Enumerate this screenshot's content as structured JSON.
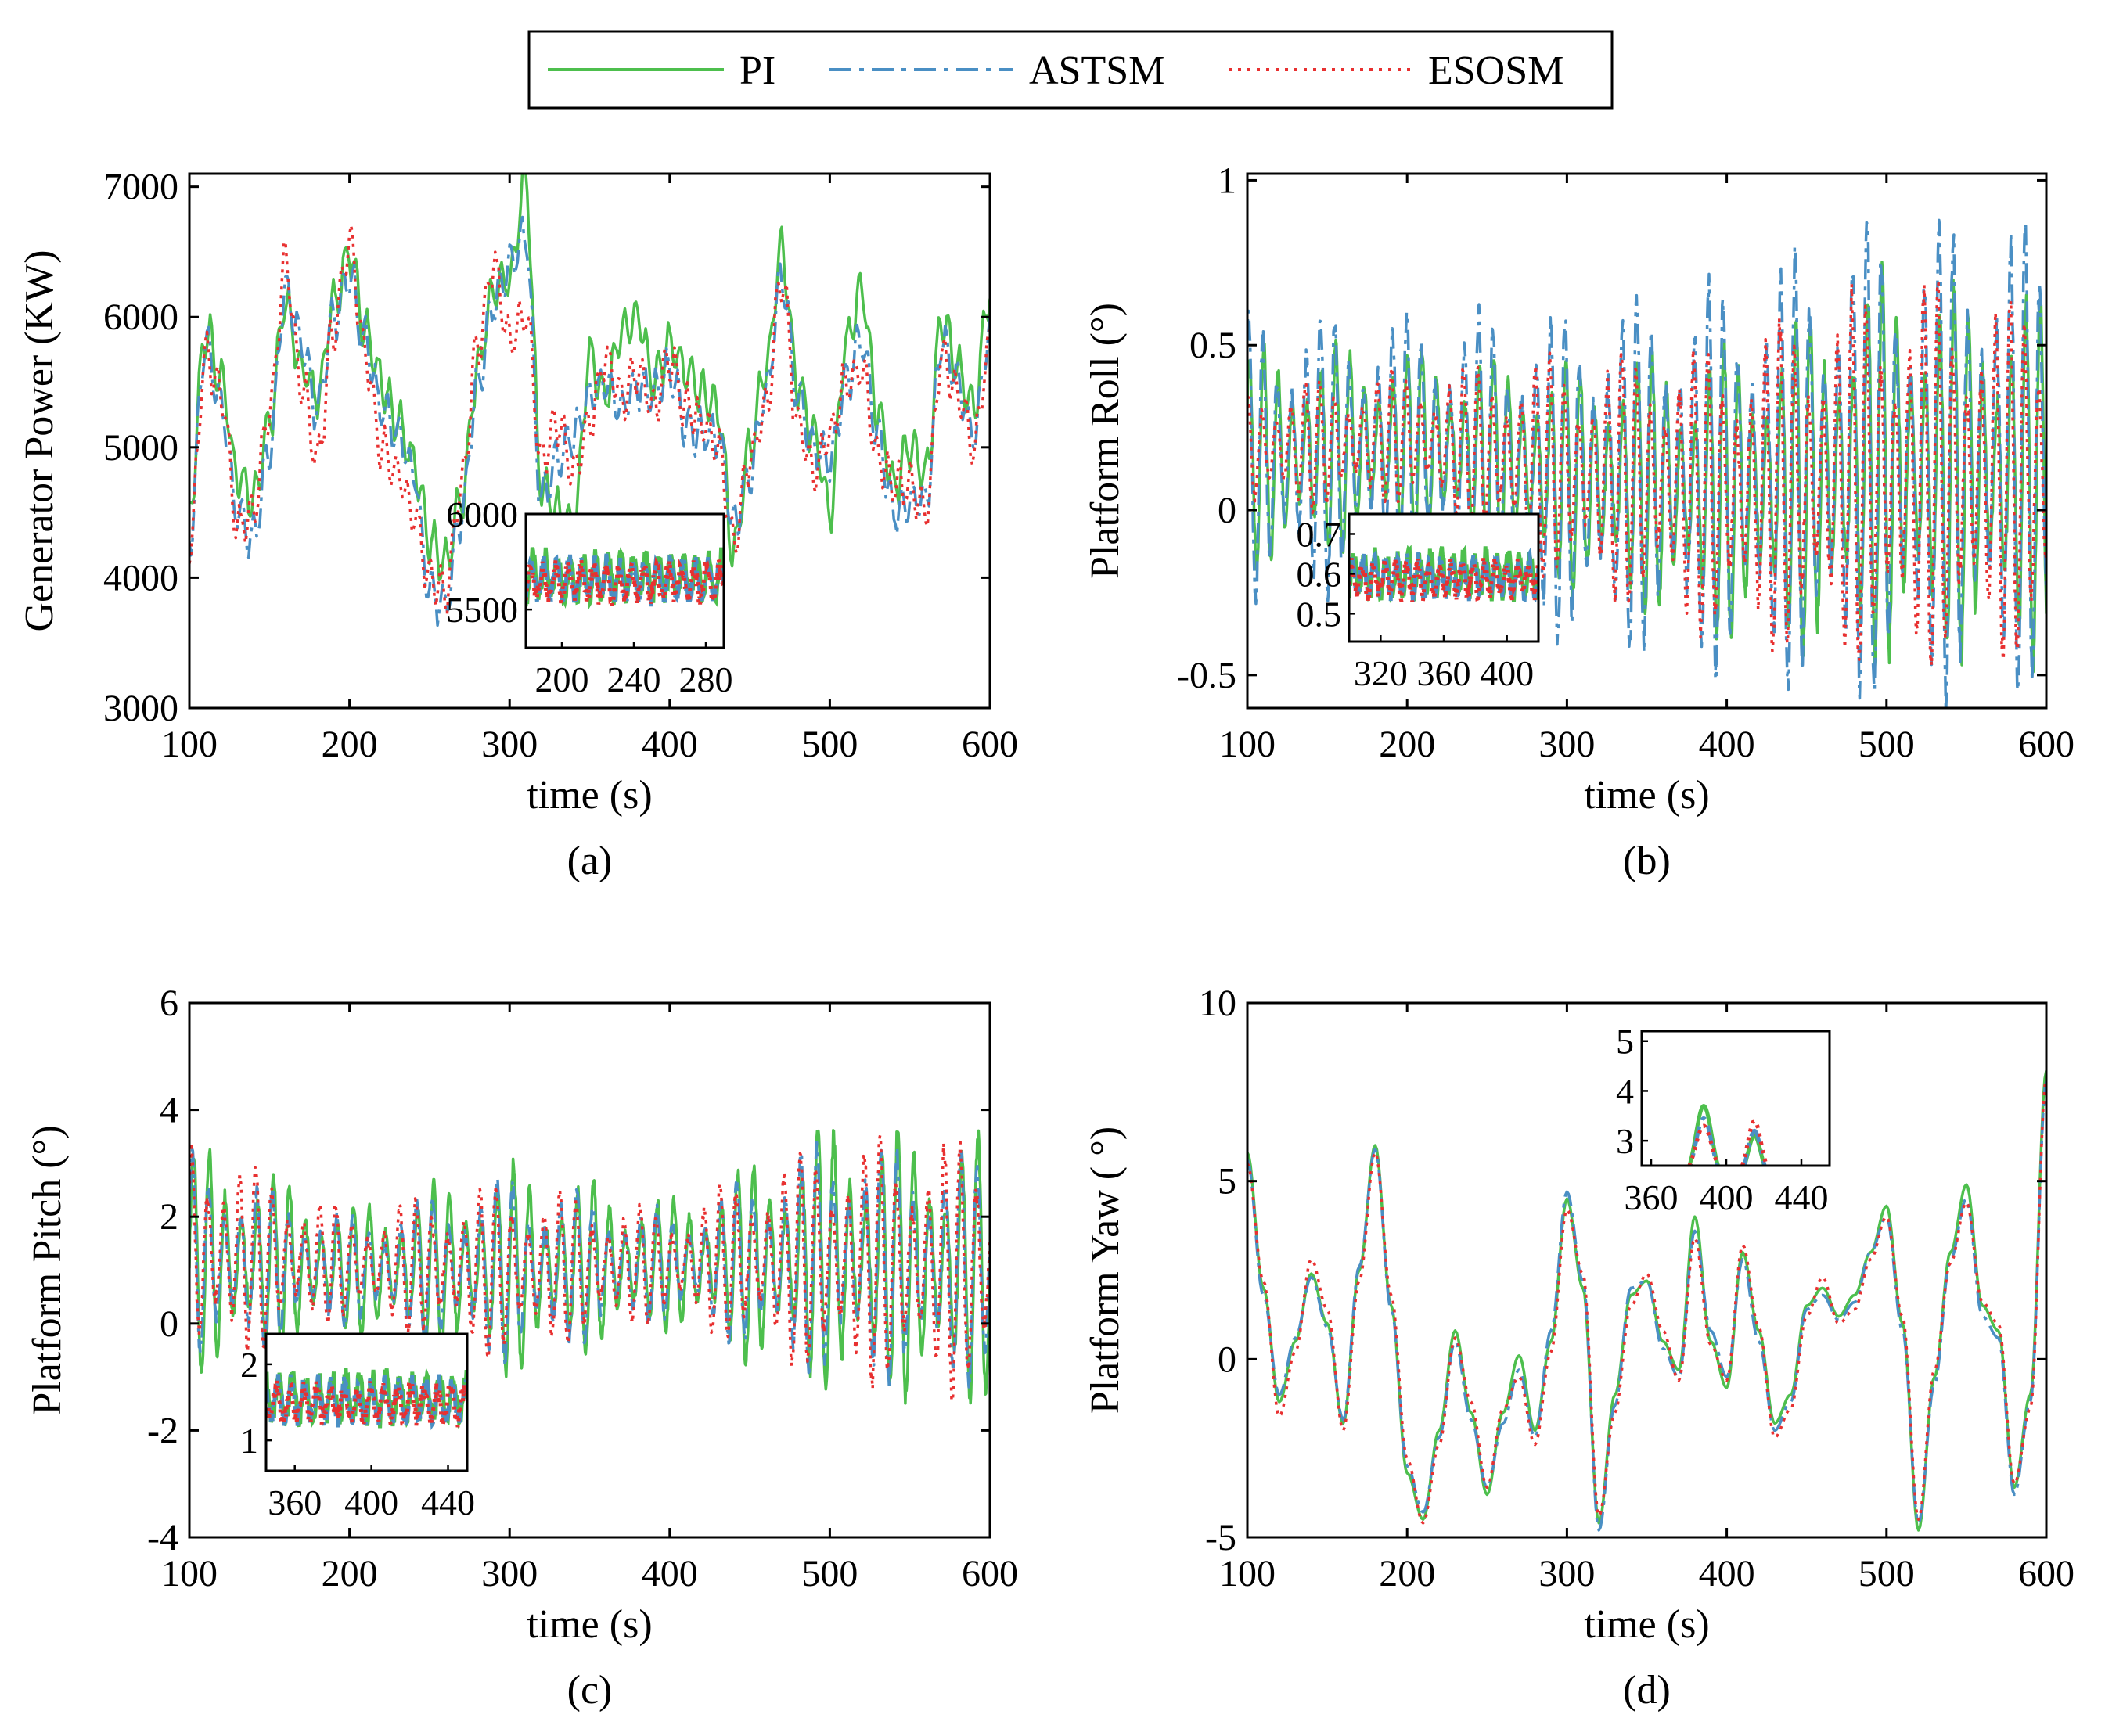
{
  "legend": {
    "entries": [
      {
        "label": "PI",
        "color": "#4dbf4d",
        "dash": "solid"
      },
      {
        "label": "ASTSM",
        "color": "#4a8fc4",
        "dash": "dashdot"
      },
      {
        "label": "ESOSM",
        "color": "#e83030",
        "dash": "dotted"
      }
    ]
  },
  "colors": {
    "pi": "#4dbf4d",
    "astsm": "#4a8fc4",
    "esosm": "#e83030"
  },
  "chart_data": [
    {
      "id": "a",
      "type": "line",
      "caption": "(a)",
      "xlabel": "time (s)",
      "ylabel": "Generator Power (KW)",
      "xlim": [
        100,
        600
      ],
      "ylim": [
        3000,
        7100
      ],
      "xticks": [
        "100",
        "200",
        "300",
        "400",
        "500",
        "600"
      ],
      "yticks": [
        "3000",
        "4000",
        "5000",
        "6000",
        "7000"
      ],
      "series": [
        {
          "name": "PI",
          "x": [
            100,
            110,
            120,
            130,
            140,
            150,
            160,
            170,
            180,
            190,
            200,
            210,
            220,
            230,
            240,
            250,
            260,
            270,
            280,
            290,
            300,
            310,
            320,
            330,
            340,
            350,
            360,
            370,
            380,
            390,
            400,
            410,
            420,
            430,
            440,
            450,
            460,
            470,
            480,
            490,
            500,
            510,
            520,
            530,
            540,
            550,
            560,
            570,
            580,
            590,
            600
          ],
          "y": [
            4500,
            5900,
            5500,
            4800,
            4600,
            5200,
            6100,
            5600,
            5400,
            6100,
            6500,
            5900,
            5500,
            5200,
            4900,
            4300,
            4100,
            4600,
            5600,
            6200,
            6300,
            7050,
            4700,
            4500,
            4400,
            5700,
            5400,
            5900,
            6000,
            5500,
            5800,
            5600,
            5400,
            5300,
            4200,
            5000,
            5600,
            6500,
            5500,
            5100,
            4500,
            5800,
            6200,
            5300,
            4700,
            5000,
            4800,
            6000,
            5600,
            5300,
            6200
          ]
        },
        {
          "name": "ASTSM",
          "x": [
            100,
            110,
            120,
            130,
            140,
            150,
            160,
            170,
            180,
            190,
            200,
            210,
            220,
            230,
            240,
            250,
            260,
            270,
            280,
            290,
            300,
            310,
            320,
            330,
            340,
            350,
            360,
            370,
            380,
            390,
            400,
            410,
            420,
            430,
            440,
            450,
            460,
            470,
            480,
            490,
            500,
            510,
            520,
            530,
            540,
            550,
            560,
            570,
            580,
            590,
            600
          ],
          "y": [
            4300,
            5800,
            5300,
            4500,
            4300,
            5000,
            6200,
            5800,
            5300,
            6000,
            6300,
            5800,
            5300,
            5100,
            4800,
            3900,
            3800,
            4500,
            5500,
            6100,
            6400,
            6600,
            4600,
            4900,
            5100,
            5400,
            5500,
            5300,
            5500,
            5400,
            5600,
            5200,
            5100,
            5100,
            4400,
            4800,
            5400,
            6300,
            5400,
            5000,
            4900,
            5500,
            5800,
            5100,
            4500,
            4600,
            4600,
            5800,
            5500,
            5100,
            5900
          ]
        },
        {
          "name": "ESOSM",
          "x": [
            100,
            110,
            120,
            130,
            140,
            150,
            160,
            170,
            180,
            190,
            200,
            210,
            220,
            230,
            240,
            250,
            260,
            270,
            280,
            290,
            300,
            310,
            320,
            330,
            340,
            350,
            360,
            370,
            380,
            390,
            400,
            410,
            420,
            430,
            440,
            450,
            460,
            470,
            480,
            490,
            500,
            510,
            520,
            530,
            540,
            550,
            560,
            570,
            580,
            590,
            600
          ],
          "y": [
            4200,
            5700,
            5400,
            4400,
            4500,
            5300,
            6400,
            5500,
            4900,
            5900,
            6600,
            5700,
            5000,
            4800,
            4500,
            4000,
            3900,
            4700,
            5800,
            6400,
            5800,
            6000,
            4900,
            5200,
            4800,
            5200,
            5700,
            5400,
            5600,
            5300,
            5700,
            5300,
            5200,
            5000,
            4300,
            4900,
            5300,
            6300,
            5200,
            4800,
            5100,
            5500,
            5600,
            4900,
            4700,
            4700,
            4500,
            5700,
            5400,
            5000,
            5800
          ]
        }
      ],
      "inset": {
        "xlim": [
          180,
          290
        ],
        "ylim": [
          5300,
          6000
        ],
        "xticks": [
          "200",
          "240",
          "280"
        ],
        "yticks": [
          "5500",
          "6000"
        ]
      }
    },
    {
      "id": "b",
      "type": "line",
      "caption": "(b)",
      "xlabel": "time (s)",
      "ylabel": "Platform Roll (°)",
      "xlim": [
        100,
        600
      ],
      "ylim": [
        -0.6,
        1.02
      ],
      "xticks": [
        "100",
        "200",
        "300",
        "400",
        "500",
        "600"
      ],
      "yticks": [
        "-0.5",
        "0",
        "0.5",
        "1"
      ],
      "series": [
        {
          "name": "PI",
          "envelope": {
            "center": [
              0.15,
              0.2,
              0.1,
              0.05,
              0.12,
              0.1
            ],
            "amp": [
              0.35,
              0.3,
              0.35,
              0.45,
              0.6,
              0.55
            ]
          },
          "period": 9
        },
        {
          "name": "ASTSM",
          "envelope": {
            "center": [
              0.15,
              0.2,
              0.1,
              0.1,
              0.15,
              0.15
            ],
            "amp": [
              0.45,
              0.4,
              0.5,
              0.6,
              0.75,
              0.7
            ]
          },
          "period": 9
        },
        {
          "name": "ESOSM",
          "envelope": {
            "center": [
              0.18,
              0.22,
              0.12,
              0.05,
              0.1,
              0.1
            ],
            "amp": [
              0.2,
              0.2,
              0.35,
              0.45,
              0.6,
              0.55
            ]
          },
          "period": 9
        }
      ],
      "inset": {
        "xlim": [
          300,
          420
        ],
        "ylim": [
          0.43,
          0.75
        ],
        "xticks": [
          "320",
          "360",
          "400"
        ],
        "yticks": [
          "0.5",
          "0.6",
          "0.7"
        ]
      }
    },
    {
      "id": "c",
      "type": "line",
      "caption": "(c)",
      "xlabel": "time (s)",
      "ylabel": "Platform Pitch (°)",
      "xlim": [
        100,
        600
      ],
      "ylim": [
        -4,
        6
      ],
      "xticks": [
        "100",
        "200",
        "300",
        "400",
        "500",
        "600"
      ],
      "yticks": [
        "-4",
        "-2",
        "0",
        "2",
        "4",
        "6"
      ],
      "series": [
        {
          "name": "PI",
          "envelope": {
            "center": [
              1.2,
              1.0,
              1.0,
              1.1,
              1.2,
              1.0
            ],
            "amp": [
              2.2,
              1.2,
              2.0,
              1.2,
              2.6,
              2.5
            ]
          },
          "period": 10
        },
        {
          "name": "ASTSM",
          "envelope": {
            "center": [
              1.2,
              1.0,
              1.0,
              1.1,
              1.2,
              1.0
            ],
            "amp": [
              2.0,
              1.0,
              1.8,
              1.0,
              2.3,
              2.2
            ]
          },
          "period": 10
        },
        {
          "name": "ESOSM",
          "envelope": {
            "center": [
              1.3,
              1.1,
              1.0,
              1.1,
              1.2,
              1.0
            ],
            "amp": [
              2.3,
              1.0,
              1.7,
              1.0,
              2.3,
              2.4
            ]
          },
          "period": 10
        }
      ],
      "inset": {
        "xlim": [
          345,
          450
        ],
        "ylim": [
          0.6,
          2.4
        ],
        "xticks": [
          "360",
          "400",
          "440"
        ],
        "yticks": [
          "1",
          "2"
        ]
      }
    },
    {
      "id": "d",
      "type": "line",
      "caption": "(d)",
      "xlabel": "time (s)",
      "ylabel": "Platform Yaw ( °)",
      "xlim": [
        100,
        600
      ],
      "ylim": [
        -5,
        10
      ],
      "xticks": [
        "100",
        "200",
        "300",
        "400",
        "500",
        "600"
      ],
      "yticks": [
        "-5",
        "0",
        "5",
        "10"
      ],
      "series": [
        {
          "name": "PI",
          "x": [
            100,
            110,
            120,
            130,
            140,
            150,
            160,
            170,
            180,
            190,
            200,
            210,
            220,
            230,
            240,
            250,
            260,
            270,
            280,
            290,
            300,
            310,
            320,
            330,
            340,
            350,
            360,
            370,
            380,
            390,
            400,
            410,
            420,
            430,
            440,
            450,
            460,
            470,
            480,
            490,
            500,
            510,
            520,
            530,
            540,
            550,
            560,
            570,
            580,
            590,
            600
          ],
          "y": [
            5.8,
            2.0,
            -1.2,
            0.5,
            2.4,
            1.0,
            -1.8,
            2.5,
            6.0,
            1.5,
            -3.2,
            -4.5,
            -2.0,
            0.8,
            -1.5,
            -3.8,
            -1.5,
            0.1,
            -2.0,
            0.5,
            4.5,
            2.0,
            -4.6,
            -1.0,
            1.8,
            2.2,
            0.5,
            -0.3,
            4.0,
            0.5,
            -0.8,
            3.0,
            0.8,
            -1.8,
            -1.0,
            1.5,
            2.0,
            1.2,
            1.8,
            3.0,
            4.3,
            1.0,
            -4.8,
            -0.5,
            3.0,
            4.9,
            1.5,
            0.8,
            -3.6,
            -1.0,
            8.1
          ]
        },
        {
          "name": "ASTSM",
          "x": [
            100,
            110,
            120,
            130,
            140,
            150,
            160,
            170,
            180,
            190,
            200,
            210,
            220,
            230,
            240,
            250,
            260,
            270,
            280,
            290,
            300,
            310,
            320,
            330,
            340,
            350,
            360,
            370,
            380,
            390,
            400,
            410,
            420,
            430,
            440,
            450,
            460,
            470,
            480,
            490,
            500,
            510,
            520,
            530,
            540,
            550,
            560,
            570,
            580,
            590,
            600
          ],
          "y": [
            5.6,
            1.8,
            -1.0,
            0.6,
            2.3,
            0.9,
            -1.7,
            2.6,
            5.9,
            1.4,
            -3.0,
            -4.3,
            -2.2,
            0.5,
            -1.7,
            -3.6,
            -1.8,
            -0.3,
            -2.2,
            0.8,
            4.7,
            2.2,
            -4.8,
            -1.3,
            2.0,
            2.2,
            0.3,
            -0.5,
            3.6,
            0.8,
            -0.5,
            2.8,
            0.5,
            -2.0,
            -1.2,
            1.4,
            1.8,
            1.1,
            1.6,
            3.0,
            4.0,
            0.8,
            -4.6,
            -0.7,
            2.8,
            4.5,
            1.2,
            0.6,
            -3.8,
            -1.2,
            7.8
          ]
        },
        {
          "name": "ESOSM",
          "x": [
            100,
            110,
            120,
            130,
            140,
            150,
            160,
            170,
            180,
            190,
            200,
            210,
            220,
            230,
            240,
            250,
            260,
            270,
            280,
            290,
            300,
            310,
            320,
            330,
            340,
            350,
            360,
            370,
            380,
            390,
            400,
            410,
            420,
            430,
            440,
            450,
            460,
            470,
            480,
            490,
            500,
            510,
            520,
            530,
            540,
            550,
            560,
            570,
            580,
            590,
            600
          ],
          "y": [
            5.5,
            2.2,
            -1.6,
            0.2,
            2.8,
            1.4,
            -2.0,
            2.2,
            5.8,
            1.8,
            -2.8,
            -4.6,
            -2.4,
            0.6,
            -1.2,
            -3.6,
            -1.4,
            -0.5,
            -2.4,
            0.2,
            4.2,
            2.4,
            -4.4,
            -1.5,
            1.5,
            2.4,
            0.8,
            -0.6,
            3.4,
            0.4,
            -0.6,
            3.2,
            0.9,
            -2.2,
            -1.4,
            1.2,
            2.3,
            1.0,
            1.4,
            2.8,
            4.0,
            1.2,
            -4.5,
            -0.3,
            2.7,
            4.4,
            1.6,
            1.0,
            -3.5,
            -1.4,
            7.9
          ]
        }
      ],
      "inset": {
        "xlim": [
          355,
          455
        ],
        "ylim": [
          2.5,
          5.2
        ],
        "xticks": [
          "360",
          "400",
          "440"
        ],
        "yticks": [
          "3",
          "4",
          "5"
        ]
      }
    }
  ]
}
